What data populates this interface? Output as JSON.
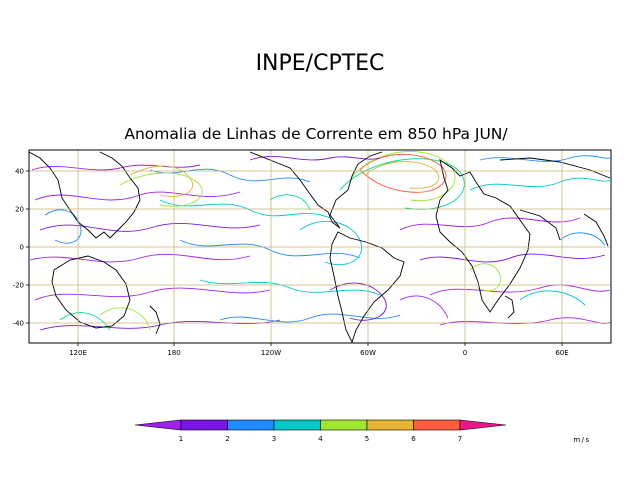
{
  "header": {
    "org": "INPE/CPTEC",
    "title": "Anomalia de Linhas de Corrente em 850 hPa JUN/"
  },
  "map": {
    "lat_labels": [
      "40",
      "20",
      "0",
      "-20",
      "-40"
    ],
    "lon_labels": [
      "120E",
      "180",
      "120W",
      "60W",
      "0",
      "60E"
    ]
  },
  "legend": {
    "values": [
      "1",
      "2",
      "3",
      "4",
      "5",
      "6",
      "7"
    ],
    "unit": "m/s",
    "colors": [
      "#a020f0",
      "#7b14e6",
      "#1e8cff",
      "#00c8c8",
      "#00dc8c",
      "#a0e632",
      "#e6b432",
      "#ff5a3c",
      "#f0148c"
    ]
  }
}
